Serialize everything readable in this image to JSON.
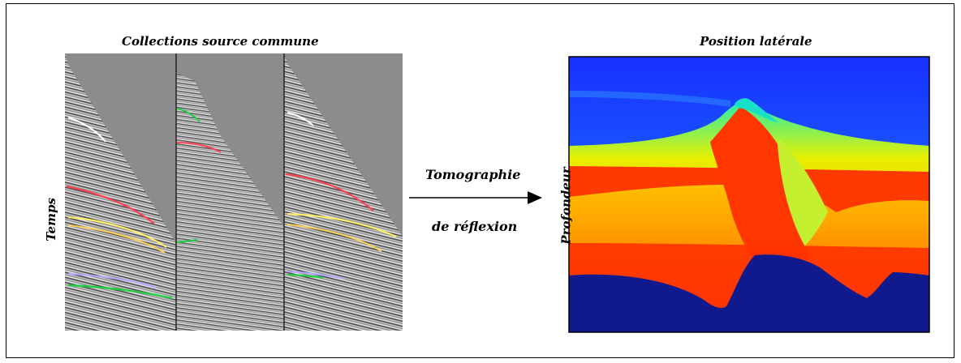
{
  "diagram": {
    "left_panel_title": "Collections source commune",
    "right_panel_title": "Position latérale",
    "left_axis_label": "Temps",
    "right_axis_label": "Profondeur",
    "arrow_label_line1": "Tomographie",
    "arrow_label_line2": "de réflexion"
  },
  "colors": {
    "seismic_bg": "#a8a8a8",
    "seismic_shadow": "#808080",
    "pick_white": "#ffffff",
    "pick_red": "#ff4050",
    "pick_yellow": "#ffee66",
    "pick_blue": "#b0a8ff",
    "pick_green": "#22cc44",
    "model_top_blue": "#1b3cff",
    "model_cyan": "#18d8ff",
    "model_yellow": "#f0e800",
    "model_orange": "#ff9400",
    "model_red": "#ff3000",
    "model_green": "#c0f030",
    "model_dark_blue": "#101a8c"
  }
}
